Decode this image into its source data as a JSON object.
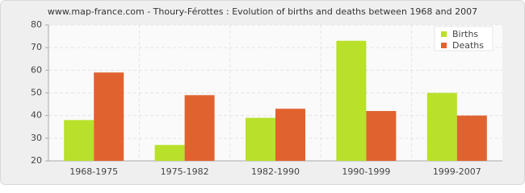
{
  "chart_data": {
    "type": "bar",
    "title": "www.map-france.com - Thoury-Férottes : Evolution of births and deaths between 1968 and 2007",
    "categories": [
      "1968-1975",
      "1975-1982",
      "1982-1990",
      "1990-1999",
      "1999-2007"
    ],
    "series": [
      {
        "name": "Births",
        "color": "#b9e02b",
        "values": [
          38,
          27,
          39,
          73,
          50
        ]
      },
      {
        "name": "Deaths",
        "color": "#e0632f",
        "values": [
          59,
          49,
          43,
          42,
          40
        ]
      }
    ],
    "ylim": [
      20,
      80
    ],
    "yticks": [
      20,
      30,
      40,
      50,
      60,
      70,
      80
    ],
    "grid": true,
    "legend": "top-right"
  }
}
